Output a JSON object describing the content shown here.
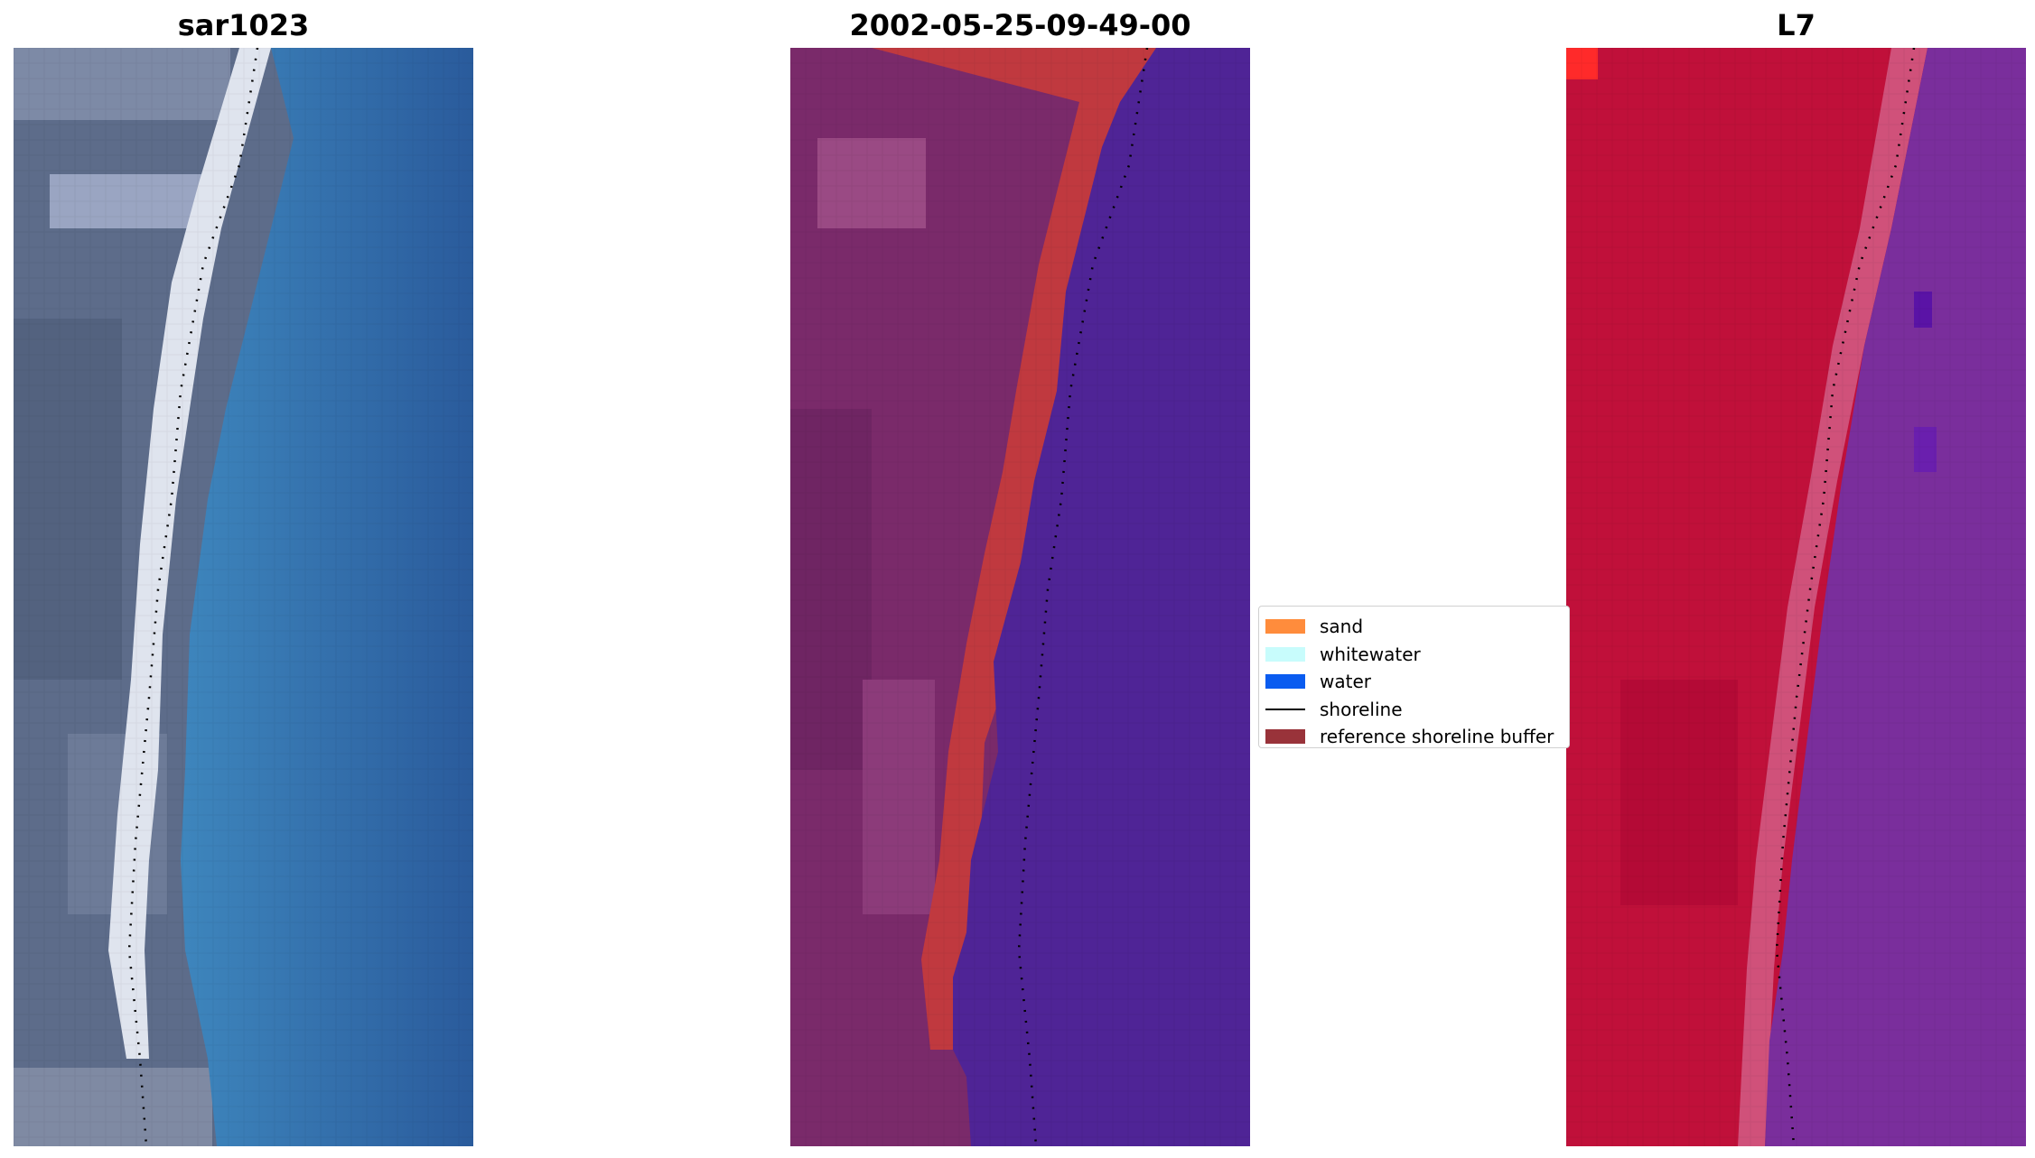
{
  "panels": [
    {
      "title": "sar1023"
    },
    {
      "title": "2002-05-25-09-49-00"
    },
    {
      "title": "L7"
    }
  ],
  "legend": {
    "items": [
      {
        "label": "sand",
        "kind": "patch",
        "color": "#ff8c3c"
      },
      {
        "label": "whitewater",
        "kind": "patch",
        "color": "#c8fcfc"
      },
      {
        "label": "water",
        "kind": "patch",
        "color": "#0a5cf0"
      },
      {
        "label": "shoreline",
        "kind": "line",
        "color": "#000000"
      },
      {
        "label": "reference shoreline buffer",
        "kind": "patch",
        "color": "#99333a"
      }
    ]
  },
  "colors": {
    "rgb_land": "#5f6f8d",
    "rgb_beach": "#dfe3ee",
    "rgb_water_near": "#3b7fb8",
    "rgb_water_far": "#2a5f9f",
    "classified_land": "#7a2a6a",
    "classified_buffer": "#c0393f",
    "classified_water": "#4f2496",
    "index_land": "#c0103a",
    "index_water": "#7a2e9c"
  }
}
